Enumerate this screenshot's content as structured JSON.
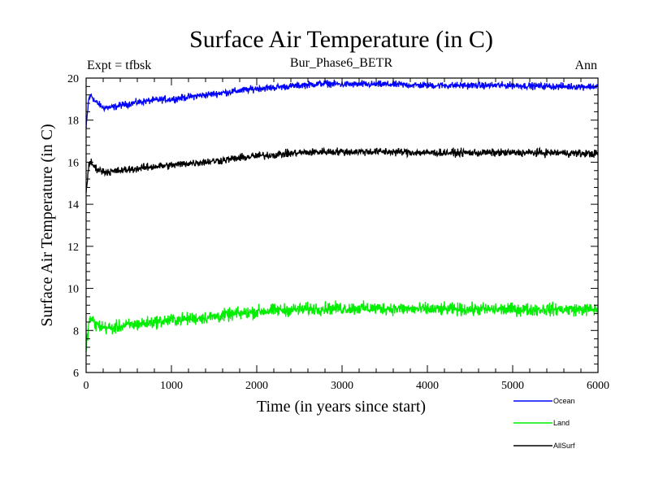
{
  "chart_data": {
    "type": "line",
    "title": "Surface Air Temperature (in C)",
    "subtitle_left": "Expt = tfbsk",
    "subtitle_center": "Bur_Phase6_BETR",
    "subtitle_right": "Ann",
    "xlabel": "Time (in years since start)",
    "ylabel": "Surface Air Temperature (in C)",
    "xlim": [
      0,
      6000
    ],
    "ylim": [
      6,
      20
    ],
    "xticks": [
      0,
      1000,
      2000,
      3000,
      4000,
      5000,
      6000
    ],
    "yticks": [
      6,
      8,
      10,
      12,
      14,
      16,
      18,
      20
    ],
    "xtick_labels": [
      "0",
      "1000",
      "2000",
      "3000",
      "4000",
      "5000",
      "6000"
    ],
    "ytick_labels": [
      "6",
      "8",
      "10",
      "12",
      "14",
      "16",
      "18",
      "20"
    ],
    "legend_position": "bottom-right outside",
    "series": [
      {
        "name": "Ocean",
        "color": "#0000ff",
        "noise": 0.08,
        "x": [
          0,
          30,
          60,
          100,
          200,
          300,
          400,
          600,
          800,
          1000,
          1200,
          1500,
          1800,
          2000,
          2200,
          2500,
          2800,
          3000,
          3500,
          4000,
          4500,
          5000,
          5500,
          6000
        ],
        "y": [
          17.6,
          19.0,
          19.2,
          18.9,
          18.6,
          18.6,
          18.7,
          18.85,
          18.95,
          19.0,
          19.1,
          19.25,
          19.4,
          19.5,
          19.55,
          19.65,
          19.75,
          19.7,
          19.7,
          19.65,
          19.65,
          19.65,
          19.6,
          19.6
        ]
      },
      {
        "name": "Land",
        "color": "#00ee00",
        "noise": 0.15,
        "x": [
          0,
          30,
          60,
          100,
          200,
          300,
          400,
          600,
          800,
          1000,
          1200,
          1500,
          1800,
          2000,
          2200,
          2500,
          2800,
          3000,
          3500,
          4000,
          4500,
          5000,
          5500,
          6000
        ],
        "y": [
          7.1,
          8.3,
          8.6,
          8.3,
          8.15,
          8.1,
          8.2,
          8.3,
          8.4,
          8.5,
          8.55,
          8.65,
          8.8,
          8.9,
          8.95,
          9.0,
          9.05,
          9.05,
          9.05,
          9.0,
          9.0,
          9.0,
          9.0,
          9.0
        ]
      },
      {
        "name": "AllSurf",
        "color": "#000000",
        "noise": 0.09,
        "x": [
          0,
          30,
          60,
          100,
          200,
          300,
          400,
          600,
          800,
          1000,
          1200,
          1500,
          1800,
          2000,
          2200,
          2500,
          2800,
          3000,
          3500,
          4000,
          4500,
          5000,
          5500,
          6000
        ],
        "y": [
          14.6,
          15.8,
          16.0,
          15.75,
          15.55,
          15.55,
          15.6,
          15.7,
          15.8,
          15.85,
          15.95,
          16.05,
          16.2,
          16.3,
          16.35,
          16.45,
          16.5,
          16.5,
          16.5,
          16.45,
          16.45,
          16.45,
          16.45,
          16.4
        ]
      }
    ]
  }
}
